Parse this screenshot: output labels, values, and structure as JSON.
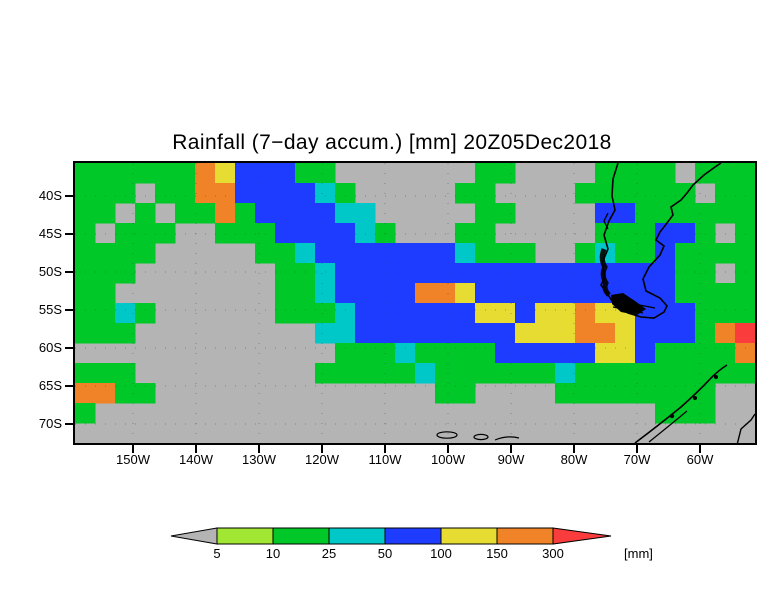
{
  "title": "Rainfall (7−day accum.) [mm] 20Z05Dec2018",
  "chart_data": {
    "type": "heatmap",
    "title": "Rainfall (7−day accum.) [mm] 20Z05Dec2018",
    "variable": "Rainfall, 7-day accumulation",
    "units": "mm",
    "timestamp_label": "20Z05Dec2018",
    "x_ticks": [
      "150W",
      "140W",
      "130W",
      "120W",
      "110W",
      "100W",
      "90W",
      "80W",
      "70W",
      "60W"
    ],
    "y_ticks": [
      "40S",
      "45S",
      "50S",
      "55S",
      "60S",
      "65S",
      "70S"
    ],
    "legend_position": "bottom",
    "colorbar": {
      "levels": [
        "5",
        "10",
        "25",
        "50",
        "100",
        "150",
        "300"
      ],
      "units_label": "[mm]",
      "segments": [
        {
          "range": "<5",
          "color": "#b4b4b4"
        },
        {
          "range": "5-10",
          "color": "#a0e632"
        },
        {
          "range": "10-25",
          "color": "#00c828"
        },
        {
          "range": "25-50",
          "color": "#00c8c8"
        },
        {
          "range": "50-100",
          "color": "#1e3cff"
        },
        {
          "range": "100-150",
          "color": "#e6dc32"
        },
        {
          "range": "150-300",
          "color": "#f08228"
        },
        {
          "range": ">300",
          "color": "#fa3c3c"
        }
      ]
    },
    "grid": {
      "note": "coarse 34x14 approximation of the plotted rainfall field; symbols index colorbar segments",
      "cols": 34,
      "rows": 14,
      "symbol_to_segment": {
        ".": 0,
        "1": 1,
        "2": 2,
        "3": 3,
        "4": 4,
        "5": 5,
        "6": 6,
        "7": 7
      },
      "pattern": [
        "2222226544422.......22....2222.222",
        "222.2266444432.....22....222222.22",
        "22.2.2262444433.....22....44222222",
        "2.222..222444432...22.....222442.2",
        "2222.....22344444443222..232242222",
        "222.......2234444444444444444422.22",
        "22........223444466544444444442222",
        "2232......222344444455455655444222",
        "222.........3344444444555665444267",
        ".............222322224444455422226",
        "222.........2222232222223222222222",
        "6622..............22....22222222..",
        "2............................222..",
        ".................................."
      ]
    }
  }
}
